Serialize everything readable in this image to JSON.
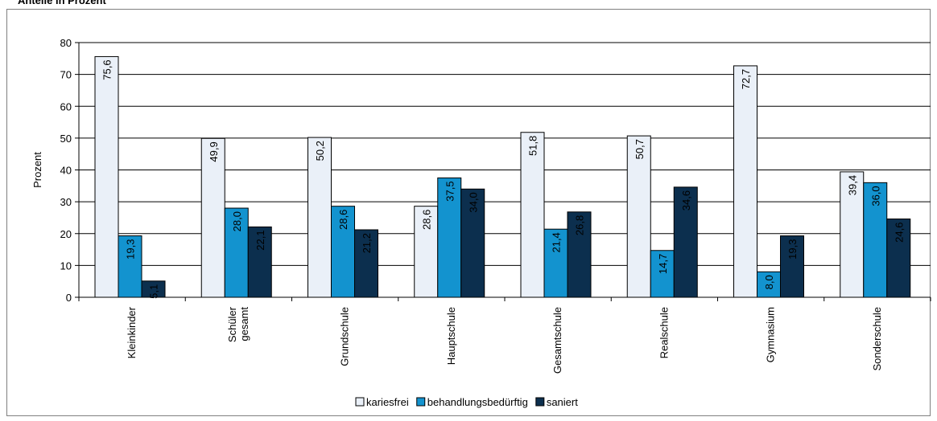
{
  "header": {
    "label": "Anteile in Prozent"
  },
  "colors": {
    "kariesfrei": "#eaf0f8",
    "behandlungsbeduerftig": "#1393cf",
    "saniert": "#0c2f4e",
    "grid": "#000000"
  },
  "chart_data": {
    "type": "bar",
    "title": "",
    "ylabel": "Prozent",
    "xlabel": "",
    "ylim": [
      0,
      80
    ],
    "yticks": [
      0,
      10,
      20,
      30,
      40,
      50,
      60,
      70,
      80
    ],
    "grid": true,
    "legend": "bottom",
    "categories": [
      [
        "Kleinkinder"
      ],
      [
        "Schüler",
        "gesamt"
      ],
      [
        "Grundschule"
      ],
      [
        "Hauptschule"
      ],
      [
        "Gesamtschule"
      ],
      [
        "Realschule"
      ],
      [
        "Gymnasium"
      ],
      [
        "Sonderschule"
      ]
    ],
    "series": [
      {
        "name": "kariesfrei",
        "color": "#eaf0f8",
        "values": [
          75.6,
          49.9,
          50.2,
          28.6,
          51.8,
          50.7,
          72.7,
          39.4
        ],
        "labels": [
          "75,6",
          "49,9",
          "50,2",
          "28,6",
          "51,8",
          "50,7",
          "72,7",
          "39,4"
        ]
      },
      {
        "name": "behandlungsbedürftig",
        "color": "#1393cf",
        "values": [
          19.3,
          28.0,
          28.6,
          37.5,
          21.4,
          14.7,
          8.0,
          36.0
        ],
        "labels": [
          "19,3",
          "28,0",
          "28,6",
          "37,5",
          "21,4",
          "14,7",
          "8,0",
          "36,0"
        ]
      },
      {
        "name": "saniert",
        "color": "#0c2f4e",
        "values": [
          5.1,
          22.1,
          21.2,
          34.0,
          26.8,
          34.6,
          19.3,
          24.6
        ],
        "labels": [
          "5,1",
          "22,1",
          "21,2",
          "34,0",
          "26,8",
          "34,6",
          "19,3",
          "24,6"
        ]
      }
    ]
  }
}
